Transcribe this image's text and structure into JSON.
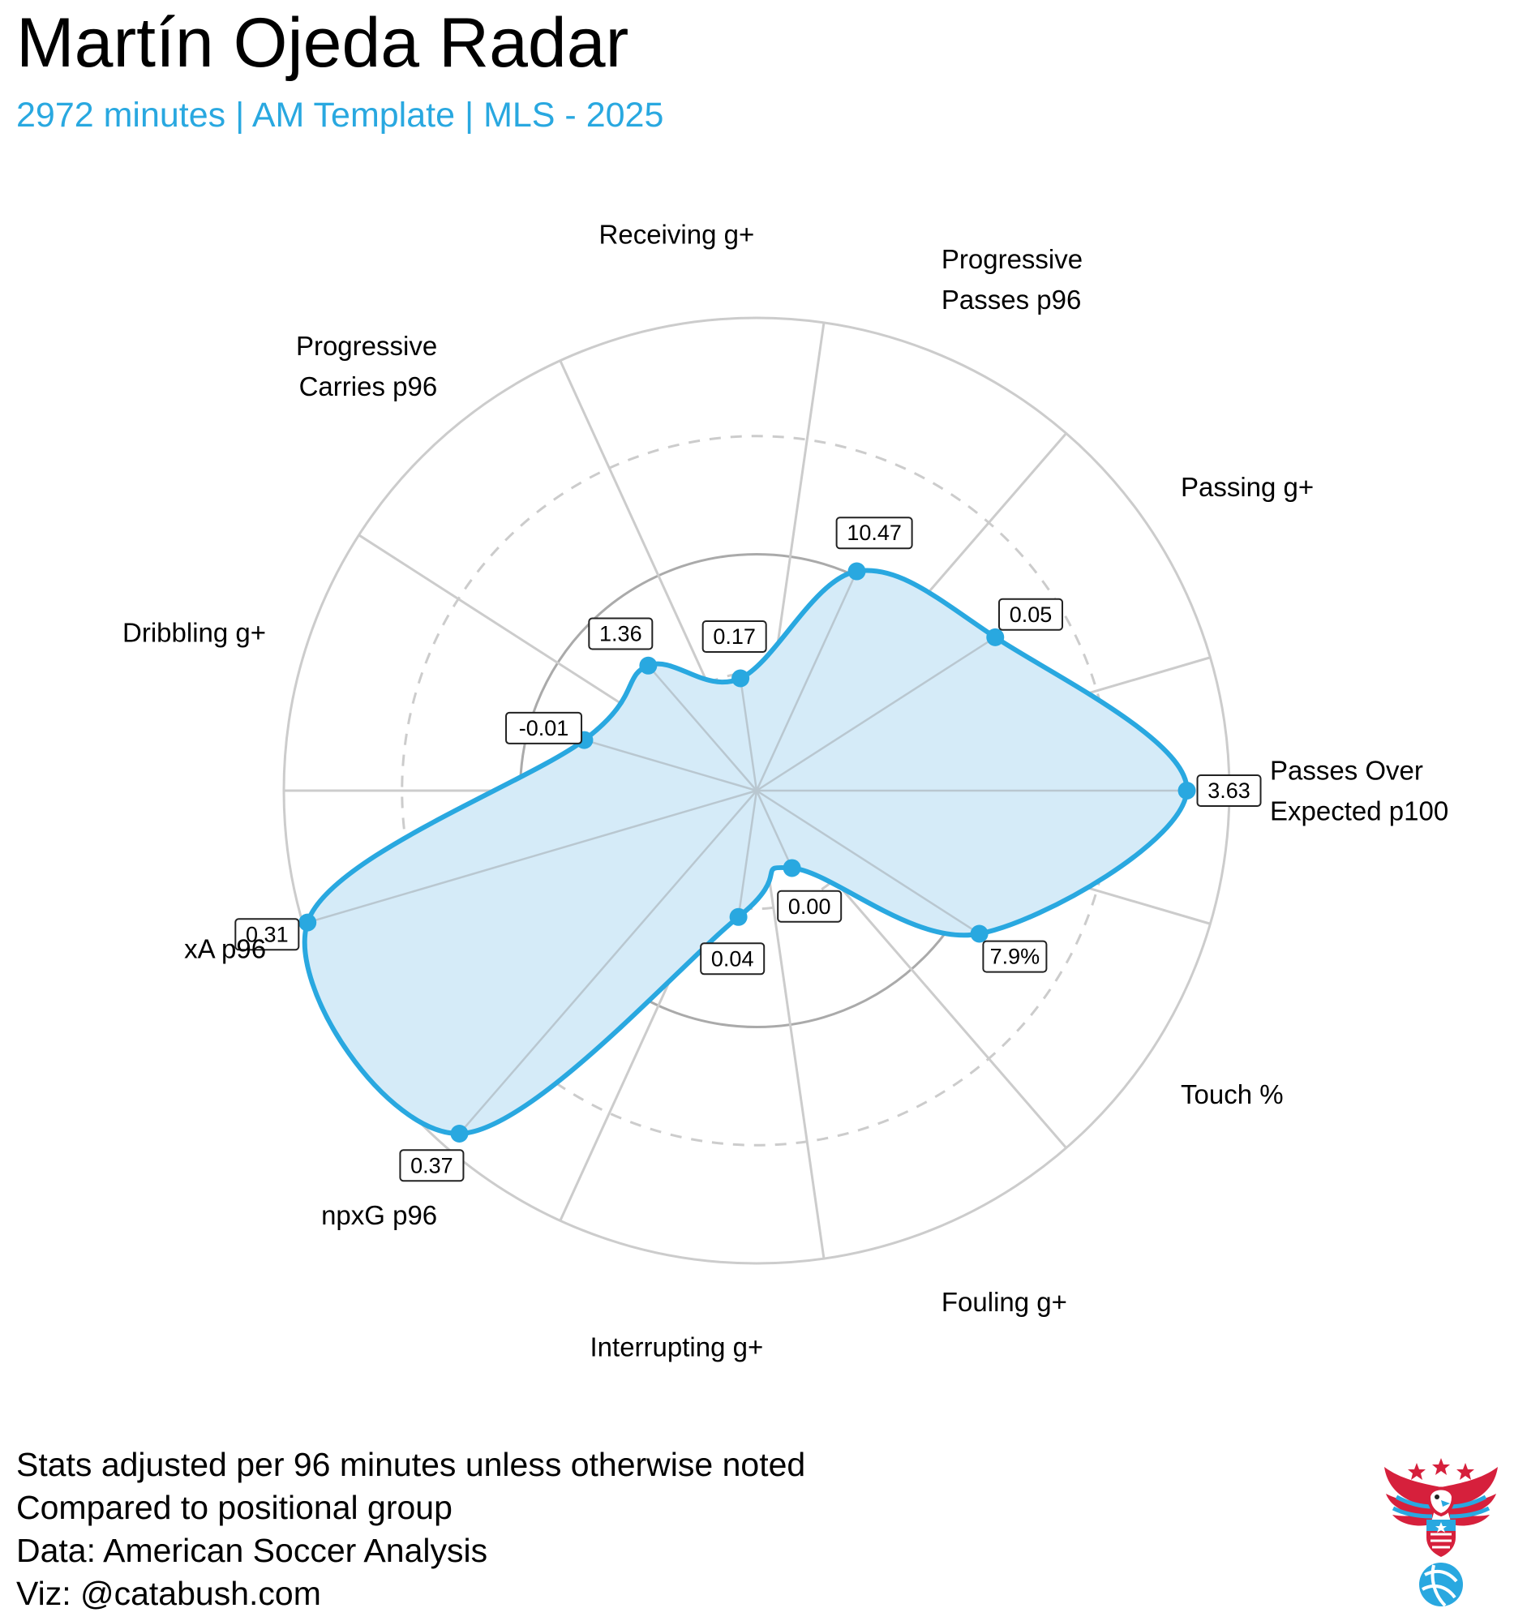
{
  "header": {
    "title": "Martín Ojeda Radar",
    "subtitle": "2972 minutes | AM Template | MLS - 2025"
  },
  "colors": {
    "accent": "#29a8e0",
    "fill": "#d5ebf8",
    "grid": "#cccccc",
    "median_ring": "#aaaaaa"
  },
  "chart_data": {
    "type": "radar",
    "title": "Martín Ojeda Radar",
    "subtitle": "2972 minutes | AM Template | MLS - 2025",
    "scale": "percentile",
    "range": [
      0,
      100
    ],
    "rings": [
      {
        "value": 25,
        "style": "dashed"
      },
      {
        "value": 50,
        "style": "solid-dark"
      },
      {
        "value": 75,
        "style": "dashed"
      },
      {
        "value": 100,
        "style": "solid"
      }
    ],
    "axes": [
      {
        "label": [
          "Passes Over",
          "Expected p100"
        ],
        "value": "3.63",
        "percentile": 91
      },
      {
        "label": [
          "Passing g+"
        ],
        "value": "0.05",
        "percentile": 60
      },
      {
        "label": [
          "Progressive",
          "Passes p96"
        ],
        "value": "10.47",
        "percentile": 51
      },
      {
        "label": [
          "Receiving g+"
        ],
        "value": "0.17",
        "percentile": 24
      },
      {
        "label": [
          "Progressive",
          "Carries p96"
        ],
        "value": "1.36",
        "percentile": 35
      },
      {
        "label": [
          "Dribbling g+"
        ],
        "value": "-0.01",
        "percentile": 38
      },
      {
        "label": [
          "xA p96"
        ],
        "value": "0.31",
        "percentile": 99
      },
      {
        "label": [
          "npxG p96"
        ],
        "value": "0.37",
        "percentile": 96
      },
      {
        "label": [
          "Interrupting g+"
        ],
        "value": "0.04",
        "percentile": 27
      },
      {
        "label": [
          "Fouling g+"
        ],
        "value": "0.00",
        "percentile": 18
      },
      {
        "label": [
          "Touch %"
        ],
        "value": "7.9%",
        "percentile": 56
      }
    ]
  },
  "notes": [
    "Stats adjusted per 96 minutes unless otherwise noted",
    "Compared to positional group",
    "Data: American Soccer Analysis",
    "Viz: @catabush.com"
  ],
  "logo": {
    "icon": "eagle-soccer-ball-logo"
  }
}
